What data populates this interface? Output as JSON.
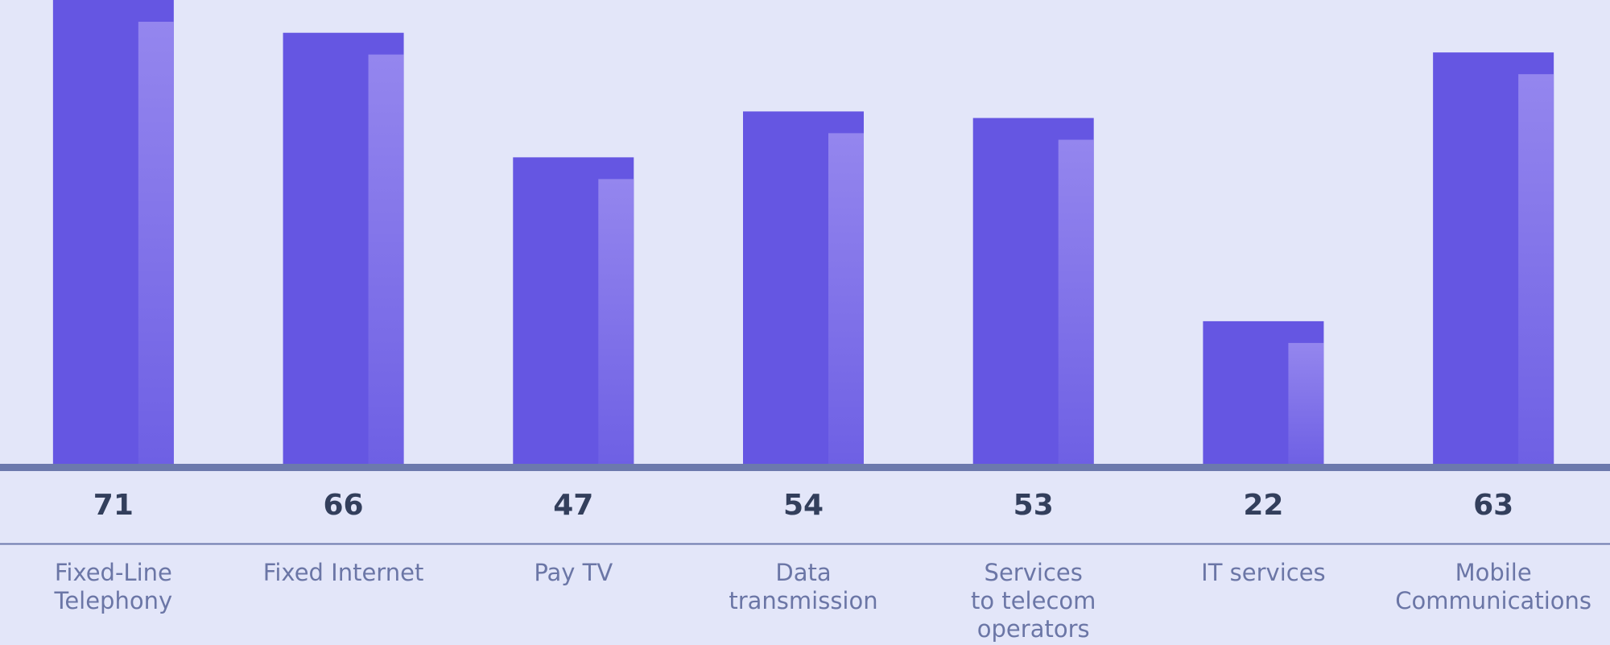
{
  "colors": {
    "background": "#e3e6f9",
    "bar": "#6556e2",
    "bar_highlight": "#9a8ef0",
    "baseline": "#6c79ad",
    "divider": "#6c79ad",
    "value_text": "#333f5c",
    "category_text": "#6b76a6"
  },
  "chart_data": {
    "type": "bar",
    "title": "",
    "xlabel": "",
    "ylabel": "",
    "categories": [
      "Fixed-Line\nTelephony",
      "Fixed Internet",
      "Pay TV",
      "Data\ntransmission",
      "Services\nto telecom\noperators",
      "IT services",
      "Mobile\nCommunications"
    ],
    "values": [
      71,
      66,
      47,
      54,
      53,
      22,
      63
    ],
    "value_labels": [
      "71",
      "66",
      "47",
      "54",
      "53",
      "22",
      "63"
    ],
    "ylim": [
      0,
      71
    ],
    "grid": false,
    "legend": "none"
  }
}
